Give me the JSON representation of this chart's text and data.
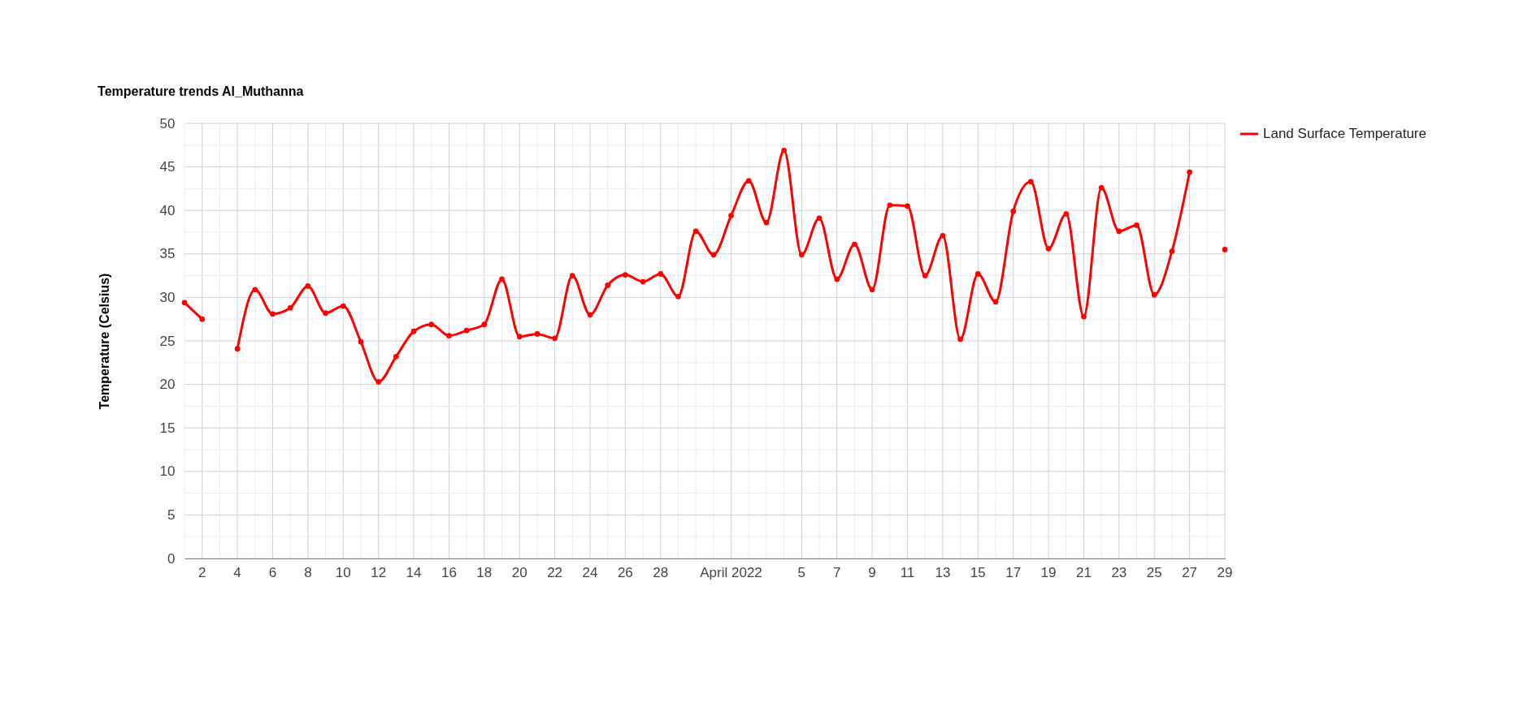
{
  "chart_data": {
    "type": "line",
    "title": "Temperature trends Al_Muthanna",
    "ylabel": "Temperature (Celsius)",
    "x": [
      "2022-03-01",
      "2022-03-02",
      "2022-03-03",
      "2022-03-04",
      "2022-03-05",
      "2022-03-06",
      "2022-03-07",
      "2022-03-08",
      "2022-03-09",
      "2022-03-10",
      "2022-03-11",
      "2022-03-12",
      "2022-03-13",
      "2022-03-14",
      "2022-03-15",
      "2022-03-16",
      "2022-03-17",
      "2022-03-18",
      "2022-03-19",
      "2022-03-20",
      "2022-03-21",
      "2022-03-22",
      "2022-03-23",
      "2022-03-24",
      "2022-03-25",
      "2022-03-26",
      "2022-03-27",
      "2022-03-28",
      "2022-03-29",
      "2022-03-30",
      "2022-03-31",
      "2022-04-01",
      "2022-04-02",
      "2022-04-03",
      "2022-04-04",
      "2022-04-05",
      "2022-04-06",
      "2022-04-07",
      "2022-04-08",
      "2022-04-09",
      "2022-04-10",
      "2022-04-11",
      "2022-04-12",
      "2022-04-13",
      "2022-04-14",
      "2022-04-15",
      "2022-04-16",
      "2022-04-17",
      "2022-04-18",
      "2022-04-19",
      "2022-04-20",
      "2022-04-21",
      "2022-04-22",
      "2022-04-23",
      "2022-04-24",
      "2022-04-25",
      "2022-04-26",
      "2022-04-27",
      "2022-04-28",
      "2022-04-29"
    ],
    "series": [
      {
        "name": "Land Surface Temperature",
        "color": "#ff0000",
        "values": [
          29.4,
          27.5,
          null,
          24.1,
          30.9,
          28.1,
          28.8,
          31.3,
          28.2,
          29.0,
          24.9,
          20.3,
          23.2,
          26.1,
          26.9,
          25.6,
          26.2,
          26.9,
          32.1,
          25.5,
          25.8,
          25.3,
          32.5,
          28.0,
          31.4,
          32.6,
          31.8,
          32.7,
          30.1,
          37.6,
          34.9,
          39.4,
          43.4,
          38.6,
          46.9,
          34.9,
          39.1,
          32.1,
          36.1,
          30.9,
          40.6,
          40.5,
          32.5,
          37.1,
          25.2,
          32.7,
          29.5,
          39.9,
          43.3,
          35.6,
          39.6,
          27.8,
          42.6,
          37.6,
          38.3,
          30.3,
          35.3,
          44.4,
          null,
          35.5
        ]
      }
    ],
    "xlim": [
      "2022-03-01",
      "2022-04-29"
    ],
    "xticks": [
      {
        "value": "2022-03-01",
        "label": null
      },
      {
        "value": "2022-03-02",
        "label": "2"
      },
      {
        "value": "2022-03-03",
        "label": null
      },
      {
        "value": "2022-03-04",
        "label": "4"
      },
      {
        "value": "2022-03-05",
        "label": null
      },
      {
        "value": "2022-03-06",
        "label": "6"
      },
      {
        "value": "2022-03-07",
        "label": null
      },
      {
        "value": "2022-03-08",
        "label": "8"
      },
      {
        "value": "2022-03-09",
        "label": null
      },
      {
        "value": "2022-03-10",
        "label": "10"
      },
      {
        "value": "2022-03-11",
        "label": null
      },
      {
        "value": "2022-03-12",
        "label": "12"
      },
      {
        "value": "2022-03-13",
        "label": null
      },
      {
        "value": "2022-03-14",
        "label": "14"
      },
      {
        "value": "2022-03-15",
        "label": null
      },
      {
        "value": "2022-03-16",
        "label": "16"
      },
      {
        "value": "2022-03-17",
        "label": null
      },
      {
        "value": "2022-03-18",
        "label": "18"
      },
      {
        "value": "2022-03-19",
        "label": null
      },
      {
        "value": "2022-03-20",
        "label": "20"
      },
      {
        "value": "2022-03-21",
        "label": null
      },
      {
        "value": "2022-03-22",
        "label": "22"
      },
      {
        "value": "2022-03-23",
        "label": null
      },
      {
        "value": "2022-03-24",
        "label": "24"
      },
      {
        "value": "2022-03-25",
        "label": null
      },
      {
        "value": "2022-03-26",
        "label": "26"
      },
      {
        "value": "2022-03-27",
        "label": null
      },
      {
        "value": "2022-03-28",
        "label": "28"
      },
      {
        "value": "2022-03-29",
        "label": null
      },
      {
        "value": "2022-03-30",
        "label": null
      },
      {
        "value": "2022-03-31",
        "label": null
      },
      {
        "value": "2022-04-01",
        "label": "April 2022"
      },
      {
        "value": "2022-04-02",
        "label": null
      },
      {
        "value": "2022-04-03",
        "label": null
      },
      {
        "value": "2022-04-04",
        "label": null
      },
      {
        "value": "2022-04-05",
        "label": "5"
      },
      {
        "value": "2022-04-06",
        "label": null
      },
      {
        "value": "2022-04-07",
        "label": "7"
      },
      {
        "value": "2022-04-08",
        "label": null
      },
      {
        "value": "2022-04-09",
        "label": "9"
      },
      {
        "value": "2022-04-10",
        "label": null
      },
      {
        "value": "2022-04-11",
        "label": "11"
      },
      {
        "value": "2022-04-12",
        "label": null
      },
      {
        "value": "2022-04-13",
        "label": "13"
      },
      {
        "value": "2022-04-14",
        "label": null
      },
      {
        "value": "2022-04-15",
        "label": "15"
      },
      {
        "value": "2022-04-16",
        "label": null
      },
      {
        "value": "2022-04-17",
        "label": "17"
      },
      {
        "value": "2022-04-18",
        "label": null
      },
      {
        "value": "2022-04-19",
        "label": "19"
      },
      {
        "value": "2022-04-20",
        "label": null
      },
      {
        "value": "2022-04-21",
        "label": "21"
      },
      {
        "value": "2022-04-22",
        "label": null
      },
      {
        "value": "2022-04-23",
        "label": "23"
      },
      {
        "value": "2022-04-24",
        "label": null
      },
      {
        "value": "2022-04-25",
        "label": "25"
      },
      {
        "value": "2022-04-26",
        "label": null
      },
      {
        "value": "2022-04-27",
        "label": "27"
      },
      {
        "value": "2022-04-28",
        "label": null
      },
      {
        "value": "2022-04-29",
        "label": "29"
      }
    ],
    "ylim": [
      0,
      50
    ],
    "yticks": [
      0,
      {
        "value": 2.5,
        "label": null
      },
      5,
      {
        "value": 7.5,
        "label": null
      },
      10,
      {
        "value": 12.5,
        "label": null
      },
      15,
      {
        "value": 17.5,
        "label": null
      },
      20,
      {
        "value": 22.5,
        "label": null
      },
      25,
      {
        "value": 27.5,
        "label": null
      },
      30,
      {
        "value": 32.5,
        "label": null
      },
      35,
      {
        "value": 37.5,
        "label": null
      },
      40,
      {
        "value": 42.5,
        "label": null
      },
      45,
      {
        "value": 47.5,
        "label": null
      },
      50
    ],
    "grid": true,
    "legend": "top right",
    "marker": "circle",
    "line_style": "solid"
  }
}
